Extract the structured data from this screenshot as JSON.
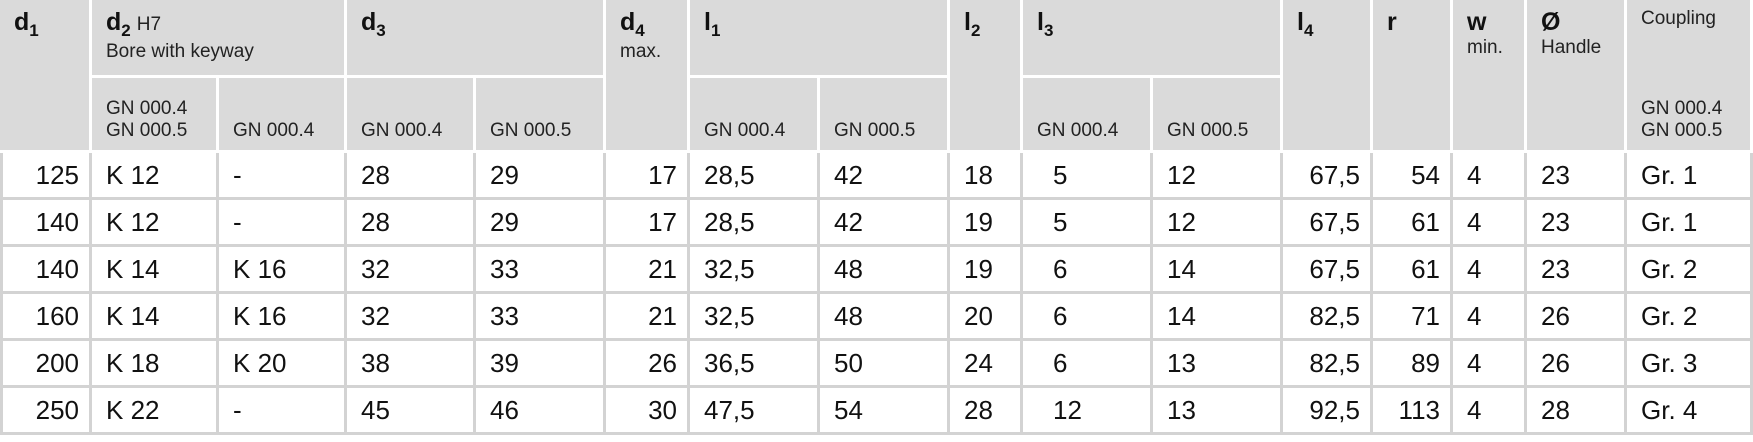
{
  "table": {
    "columns": [
      {
        "symbol": "d",
        "sub": "1"
      },
      {
        "symbol": "d",
        "sub": "2",
        "extra": "H7",
        "note": "Bore with keyway",
        "variants": [
          [
            "GN 000.4",
            "GN 000.5"
          ],
          [
            "GN 000.4"
          ]
        ]
      },
      {
        "symbol": "d",
        "sub": "3",
        "variants": [
          [
            "GN 000.4"
          ],
          [
            "GN 000.5"
          ]
        ]
      },
      {
        "symbol": "d",
        "sub": "4",
        "note": "max."
      },
      {
        "symbol": "l",
        "sub": "1",
        "variants": [
          [
            "GN 000.4"
          ],
          [
            "GN 000.5"
          ]
        ]
      },
      {
        "symbol": "l",
        "sub": "2"
      },
      {
        "symbol": "l",
        "sub": "3",
        "variants": [
          [
            "GN 000.4"
          ],
          [
            "GN 000.5"
          ]
        ]
      },
      {
        "symbol": "l",
        "sub": "4"
      },
      {
        "symbol": "r"
      },
      {
        "symbol": "w",
        "note": "min."
      },
      {
        "symbol": "Ø",
        "note": "Handle"
      },
      {
        "label": "Coupling",
        "variants": [
          [
            "GN 000.4",
            "GN 000.5"
          ]
        ]
      }
    ],
    "rows": [
      [
        "125",
        "K 12",
        "-",
        "28",
        "29",
        "17",
        "28,5",
        "42",
        "18",
        "5",
        "12",
        "67,5",
        "54",
        "4",
        "23",
        "Gr. 1"
      ],
      [
        "140",
        "K 12",
        "-",
        "28",
        "29",
        "17",
        "28,5",
        "42",
        "19",
        "5",
        "12",
        "67,5",
        "61",
        "4",
        "23",
        "Gr. 1"
      ],
      [
        "140",
        "K 14",
        "K 16",
        "32",
        "33",
        "21",
        "32,5",
        "48",
        "19",
        "6",
        "14",
        "67,5",
        "61",
        "4",
        "23",
        "Gr. 2"
      ],
      [
        "160",
        "K 14",
        "K 16",
        "32",
        "33",
        "21",
        "32,5",
        "48",
        "20",
        "6",
        "14",
        "82,5",
        "71",
        "4",
        "26",
        "Gr. 2"
      ],
      [
        "200",
        "K 18",
        "K 20",
        "38",
        "39",
        "26",
        "36,5",
        "50",
        "24",
        "6",
        "13",
        "82,5",
        "89",
        "4",
        "26",
        "Gr. 3"
      ],
      [
        "250",
        "K 22",
        "-",
        "45",
        "46",
        "30",
        "47,5",
        "54",
        "28",
        "12",
        "13",
        "92,5",
        "113",
        "4",
        "28",
        "Gr. 4"
      ]
    ]
  }
}
